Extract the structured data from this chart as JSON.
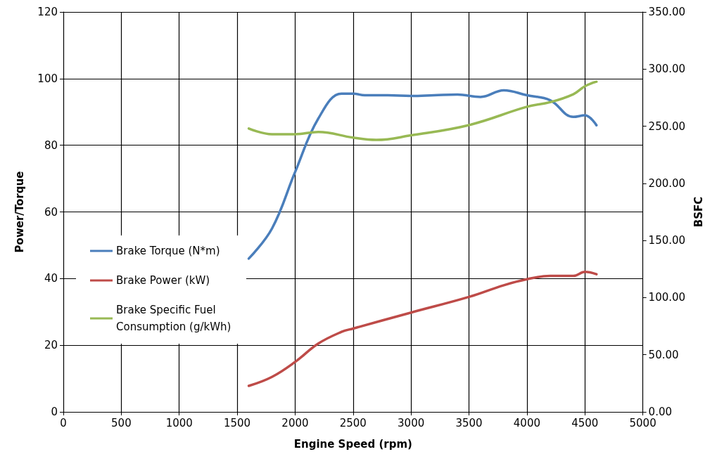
{
  "chart_data": {
    "type": "line",
    "xlabel": "Engine Speed (rpm)",
    "ylabel": "Power/Torque",
    "y2label": "BSFC",
    "xlim": [
      0,
      5000
    ],
    "xticks": [
      0,
      500,
      1000,
      1500,
      2000,
      2500,
      3000,
      3500,
      4000,
      4500,
      5000
    ],
    "ylim": [
      0,
      120
    ],
    "yticks": [
      0,
      20,
      40,
      60,
      80,
      100,
      120
    ],
    "y2lim": [
      0,
      350
    ],
    "y2ticks": [
      {
        "value": 0,
        "label": "0.00"
      },
      {
        "value": 50,
        "label": "50.00"
      },
      {
        "value": 100,
        "label": "100.00"
      },
      {
        "value": 150,
        "label": "150.00"
      },
      {
        "value": 200,
        "label": "200.00"
      },
      {
        "value": 250,
        "label": "250.00"
      },
      {
        "value": 300,
        "label": "300.00"
      },
      {
        "value": 350,
        "label": "350.00"
      }
    ],
    "grid": true,
    "legend": "left",
    "marker": "none",
    "line_style": "solid",
    "series": [
      {
        "name": "Brake Torque (N*m)",
        "color": "#4a7ebb",
        "x": [
          1600,
          1800,
          2000,
          2200,
          2400,
          2500,
          2600,
          2800,
          3000,
          3200,
          3400,
          3600,
          3800,
          4000,
          4200,
          4400,
          4500,
          4600
        ],
        "values": [
          46,
          55,
          72,
          88,
          95.5,
          95.5,
          95,
          95,
          94.8,
          95,
          95.2,
          94.5,
          96.5,
          95,
          93.5,
          88.5,
          89,
          86
        ]
      },
      {
        "name": "Brake Power (kW)",
        "color": "#be4b48",
        "x": [
          1600,
          1800,
          2000,
          2200,
          2400,
          2500,
          3000,
          3500,
          3800,
          4000,
          4200,
          4400,
          4500,
          4600
        ],
        "values": [
          7.8,
          10.5,
          15,
          20.5,
          24,
          25,
          29.8,
          34.5,
          38,
          39.8,
          40.8,
          40.8,
          42,
          41.3
        ]
      },
      {
        "name": "Brake Specific Fuel Consumption (g/kWh)",
        "color": "#98b954",
        "axis": "y2",
        "x": [
          1600,
          1800,
          2000,
          2200,
          2500,
          2700,
          3000,
          3500,
          4000,
          4200,
          4400,
          4500,
          4600
        ],
        "values": [
          248,
          243,
          243,
          245,
          240,
          238,
          242,
          251,
          267,
          271,
          278,
          285,
          289
        ]
      }
    ]
  }
}
